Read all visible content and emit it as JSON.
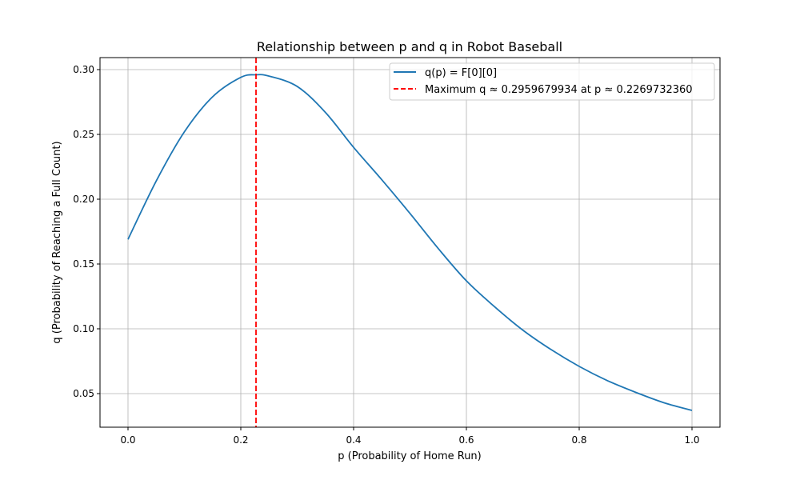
{
  "chart_data": {
    "type": "line",
    "title": "Relationship between p and q in Robot Baseball",
    "xlabel": "p (Probability of Home Run)",
    "ylabel": "q (Probability of Reaching a Full Count)",
    "xlim": [
      -0.05,
      1.05
    ],
    "ylim": [
      0.025,
      0.309
    ],
    "xticks": [
      0.0,
      0.2,
      0.4,
      0.6,
      0.8,
      1.0
    ],
    "xtick_labels": [
      "0.0",
      "0.2",
      "0.4",
      "0.6",
      "0.8",
      "1.0"
    ],
    "yticks": [
      0.05,
      0.1,
      0.15,
      0.2,
      0.25,
      0.3
    ],
    "ytick_labels": [
      "0.05",
      "0.10",
      "0.15",
      "0.20",
      "0.25",
      "0.30"
    ],
    "grid": true,
    "legend_position": "top-right",
    "series": [
      {
        "name": "q(p) = F[0][0]",
        "color": "#1f77b4",
        "style": "solid",
        "x": [
          0,
          0.05,
          0.1,
          0.15,
          0.2,
          0.227,
          0.25,
          0.3,
          0.35,
          0.4,
          0.45,
          0.5,
          0.55,
          0.6,
          0.65,
          0.7,
          0.75,
          0.8,
          0.85,
          0.9,
          0.95,
          1.0
        ],
        "y": [
          0.169,
          0.214,
          0.252,
          0.279,
          0.294,
          0.296,
          0.295,
          0.287,
          0.267,
          0.24,
          0.215,
          0.189,
          0.162,
          0.137,
          0.117,
          0.099,
          0.084,
          0.071,
          0.06,
          0.051,
          0.043,
          0.037
        ]
      }
    ],
    "vline": {
      "name": "Maximum q ≈ 0.2959679934 at p ≈ 0.2269732360",
      "x": 0.226973236,
      "color": "#ff0000",
      "style": "dashed"
    }
  }
}
